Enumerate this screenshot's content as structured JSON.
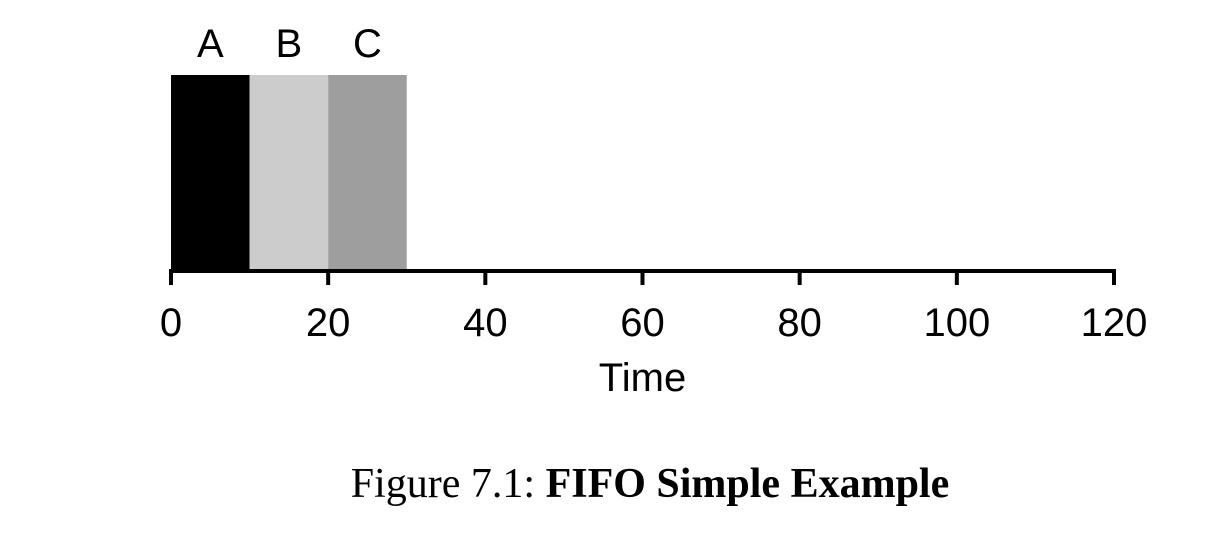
{
  "chart_data": {
    "type": "bar",
    "orientation": "horizontal-timeline",
    "jobs": [
      {
        "name": "A",
        "start": 0,
        "end": 10,
        "color": "#000000"
      },
      {
        "name": "B",
        "start": 10,
        "end": 20,
        "color": "#cccccc"
      },
      {
        "name": "C",
        "start": 20,
        "end": 30,
        "color": "#9e9e9e"
      }
    ],
    "xlabel": "Time",
    "xlim": [
      0,
      120
    ],
    "xticks": [
      0,
      20,
      40,
      60,
      80,
      100,
      120
    ],
    "grid": false
  },
  "caption": {
    "prefix": "Figure 7.1: ",
    "title": "FIFO Simple Example"
  }
}
